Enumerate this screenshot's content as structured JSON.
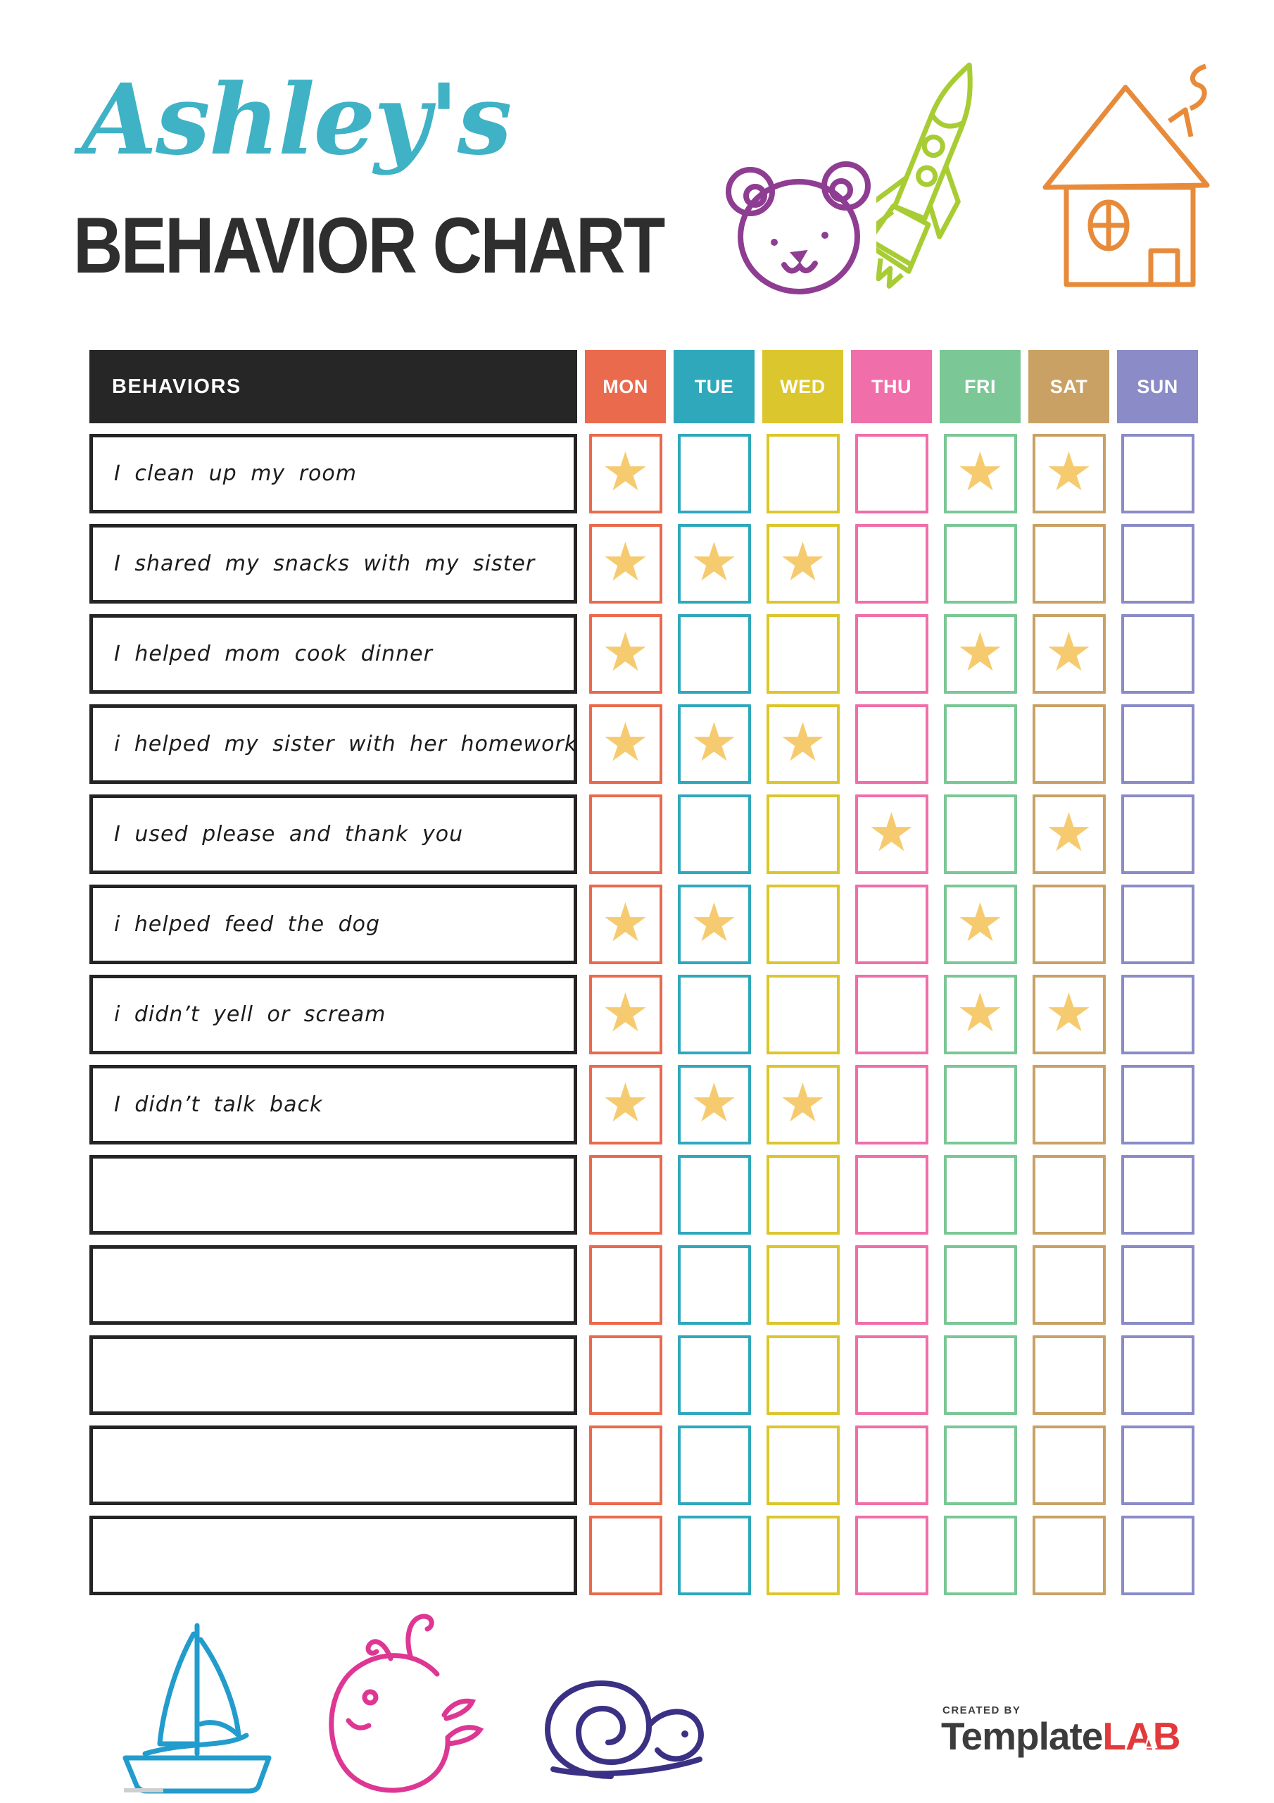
{
  "page": {
    "title_script": "Ashley's",
    "title_heading": "BEHAVIOR CHART",
    "title_script_color": "#3fb2c5"
  },
  "decorations": {
    "top_icons": [
      "bear-face",
      "rocket",
      "house"
    ],
    "bottom_icons": [
      "sailboat",
      "whale",
      "snail"
    ],
    "colors": {
      "bear": "#8e3d92",
      "rocket": "#a8cc33",
      "house": "#e78b3b",
      "sailboat": "#219ccc",
      "whale": "#de3793",
      "snail": "#3a3184"
    }
  },
  "table": {
    "behaviors_header": "BEHAVIORS",
    "header_bg": "#262626",
    "star_glyph": "★",
    "star_color": "#f6cb70",
    "days": [
      {
        "label": "MON",
        "color": "#ea6a4d"
      },
      {
        "label": "TUE",
        "color": "#2fa8bc"
      },
      {
        "label": "WED",
        "color": "#dcc62d"
      },
      {
        "label": "THU",
        "color": "#f06ea9"
      },
      {
        "label": "FRI",
        "color": "#7bc795"
      },
      {
        "label": "SAT",
        "color": "#c9a165"
      },
      {
        "label": "SUN",
        "color": "#8a8bc7"
      }
    ],
    "rows": [
      {
        "label": "I clean up my room",
        "stars": [
          1,
          0,
          0,
          0,
          1,
          1,
          0
        ]
      },
      {
        "label": "I shared my snacks with my sister",
        "stars": [
          1,
          1,
          1,
          0,
          0,
          0,
          0
        ]
      },
      {
        "label": "I helped mom cook dinner",
        "stars": [
          1,
          0,
          0,
          0,
          1,
          1,
          0
        ]
      },
      {
        "label": "i helped my sister with her homework",
        "stars": [
          1,
          1,
          1,
          0,
          0,
          0,
          0
        ]
      },
      {
        "label": "I used please and thank you",
        "stars": [
          0,
          0,
          0,
          1,
          0,
          1,
          0
        ]
      },
      {
        "label": "i helped feed the dog",
        "stars": [
          1,
          1,
          0,
          0,
          1,
          0,
          0
        ]
      },
      {
        "label": "i didn’t yell or scream",
        "stars": [
          1,
          0,
          0,
          0,
          1,
          1,
          0
        ]
      },
      {
        "label": "I didn’t talk back",
        "stars": [
          1,
          1,
          1,
          0,
          0,
          0,
          0
        ]
      },
      {
        "label": "",
        "stars": [
          0,
          0,
          0,
          0,
          0,
          0,
          0
        ]
      },
      {
        "label": "",
        "stars": [
          0,
          0,
          0,
          0,
          0,
          0,
          0
        ]
      },
      {
        "label": "",
        "stars": [
          0,
          0,
          0,
          0,
          0,
          0,
          0
        ]
      },
      {
        "label": "",
        "stars": [
          0,
          0,
          0,
          0,
          0,
          0,
          0
        ]
      },
      {
        "label": "",
        "stars": [
          0,
          0,
          0,
          0,
          0,
          0,
          0
        ]
      }
    ]
  },
  "footer": {
    "created_by": "CREATED BY",
    "brand_primary": "Template",
    "brand_accent": "LAB",
    "brand_accent_color": "#e23a3c"
  }
}
